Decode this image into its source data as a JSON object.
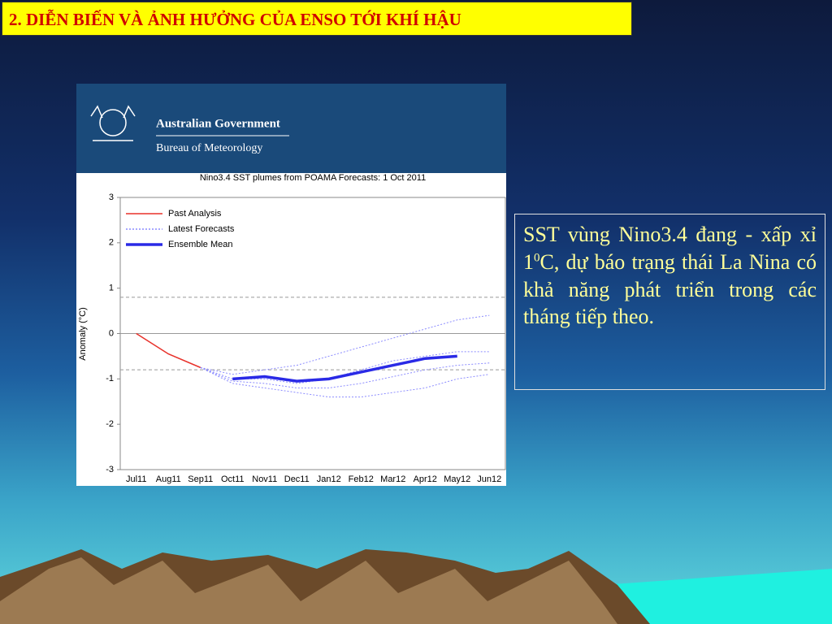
{
  "header": {
    "title": "2. DIỄN BIẾN VÀ ẢNH HƯỞNG CỦA ENSO TỚI KHÍ HẬU"
  },
  "logo": {
    "line1": "Australian Government",
    "line2": "Bureau of Meteorology"
  },
  "chart_data": {
    "type": "line",
    "title": "Nino3.4 SST plumes from POAMA Forecasts:  1 Oct 2011",
    "y_label": "Anomaly (°C)",
    "categories": [
      "Jul11",
      "Aug11",
      "Sep11",
      "Oct11",
      "Nov11",
      "Dec11",
      "Jan12",
      "Feb12",
      "Mar12",
      "Apr12",
      "May12",
      "Jun12"
    ],
    "ylim": [
      -3,
      3
    ],
    "yticks": [
      -3,
      -2,
      -1,
      0,
      1,
      2,
      3
    ],
    "reference_lines": [
      0.8,
      -0.8
    ],
    "series": [
      {
        "name": "Past Analysis",
        "color": "#e8312a",
        "values": [
          0,
          -0.45,
          -0.75,
          null,
          null,
          null,
          null,
          null,
          null,
          null,
          null,
          null
        ]
      },
      {
        "name": "Latest Forecasts",
        "color": "#8c8cff",
        "style": "dotted",
        "members": [
          [
            null,
            null,
            -0.75,
            -0.9,
            -0.8,
            -0.7,
            -0.5,
            -0.3,
            -0.1,
            0.1,
            0.3,
            0.4
          ],
          [
            null,
            null,
            -0.75,
            -1.0,
            -1.0,
            -1.1,
            -1.0,
            -0.8,
            -0.6,
            -0.5,
            -0.4,
            -0.4
          ],
          [
            null,
            null,
            -0.75,
            -1.05,
            -1.1,
            -1.2,
            -1.2,
            -1.1,
            -0.95,
            -0.8,
            -0.7,
            -0.65
          ],
          [
            null,
            null,
            -0.75,
            -1.1,
            -1.2,
            -1.3,
            -1.4,
            -1.4,
            -1.3,
            -1.2,
            -1.0,
            -0.9
          ]
        ]
      },
      {
        "name": "Ensemble Mean",
        "color": "#2a2ae6",
        "values": [
          null,
          null,
          null,
          -1.0,
          -0.95,
          -1.05,
          -1.0,
          -0.85,
          -0.7,
          -0.55,
          -0.5,
          null
        ]
      }
    ]
  },
  "note": {
    "parts": [
      "SST vùng Nino3.4 đang - xấp xỉ 1",
      "0",
      "C, dự báo trạng thái La Nina có khả năng phát triển trong các tháng tiếp theo."
    ]
  }
}
